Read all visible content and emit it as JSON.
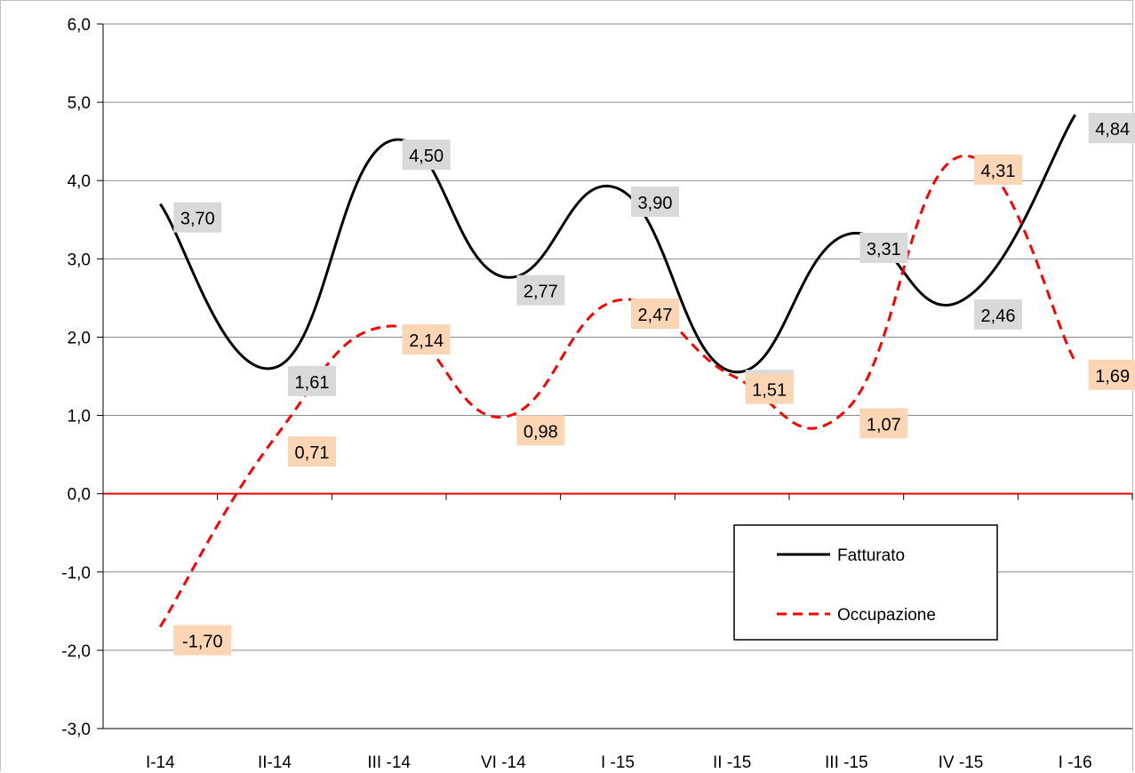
{
  "chart_data": {
    "type": "line",
    "categories": [
      "I-14",
      "II-14",
      "III -14",
      "VI -14",
      "I -15",
      "II -15",
      "III -15",
      "IV -15",
      "I -16"
    ],
    "series": [
      {
        "name": "Fatturato",
        "values": [
          3.7,
          1.61,
          4.5,
          2.77,
          3.9,
          1.56,
          3.31,
          2.46,
          4.84
        ],
        "labels": [
          "3,70",
          "1,61",
          "4,50",
          "2,77",
          "3,90",
          "1,56",
          "3,31",
          "2,46",
          "4,84"
        ],
        "color": "#000000",
        "style": "solid",
        "label_bg": "#d9d9d9"
      },
      {
        "name": "Occupazione",
        "values": [
          -1.7,
          0.71,
          2.14,
          0.98,
          2.47,
          1.51,
          1.07,
          4.31,
          1.69
        ],
        "labels": [
          "-1,70",
          "0,71",
          "2,14",
          "0,98",
          "2,47",
          "1,51",
          "1,07",
          "4,31",
          "1,69"
        ],
        "color": "#ff0000",
        "style": "dashed",
        "label_bg": "#fcd5b5"
      }
    ],
    "ylim": [
      -3,
      6
    ],
    "yticks": [
      -3,
      -2,
      -1,
      0,
      1,
      2,
      3,
      4,
      5,
      6
    ],
    "ytick_labels": [
      "-3,0",
      "-2,0",
      "-1,0",
      "0,0",
      "1,0",
      "2,0",
      "3,0",
      "4,0",
      "5,0",
      "6,0"
    ],
    "zero_line_color": "#ff0000",
    "grid": true,
    "legend_position": "bottom-right",
    "title": "",
    "xlabel": "",
    "ylabel": ""
  }
}
